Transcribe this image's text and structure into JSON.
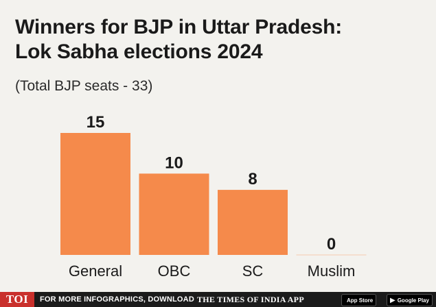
{
  "title_line1": "Winners for BJP in Uttar Pradesh:",
  "title_line2": "Lok Sabha elections 2024",
  "subtitle": "(Total BJP seats - 33)",
  "chart_data": {
    "type": "bar",
    "categories": [
      "General",
      "OBC",
      "SC",
      "Muslim"
    ],
    "values": [
      15,
      10,
      8,
      0
    ],
    "data_labels": [
      "15",
      "10",
      "8",
      "0"
    ],
    "bar_color": "#f58a4b",
    "ylim": [
      0,
      15
    ],
    "grid": false,
    "legend": "none"
  },
  "footer": {
    "logo": "TOI",
    "text": "FOR MORE INFOGRAPHICS, DOWNLOAD",
    "brand": "THE TIMES OF INDIA APP",
    "app_store": "App Store",
    "google_play": "Google Play",
    "apple_icon": "apple-icon",
    "play_icon": "play-icon"
  }
}
